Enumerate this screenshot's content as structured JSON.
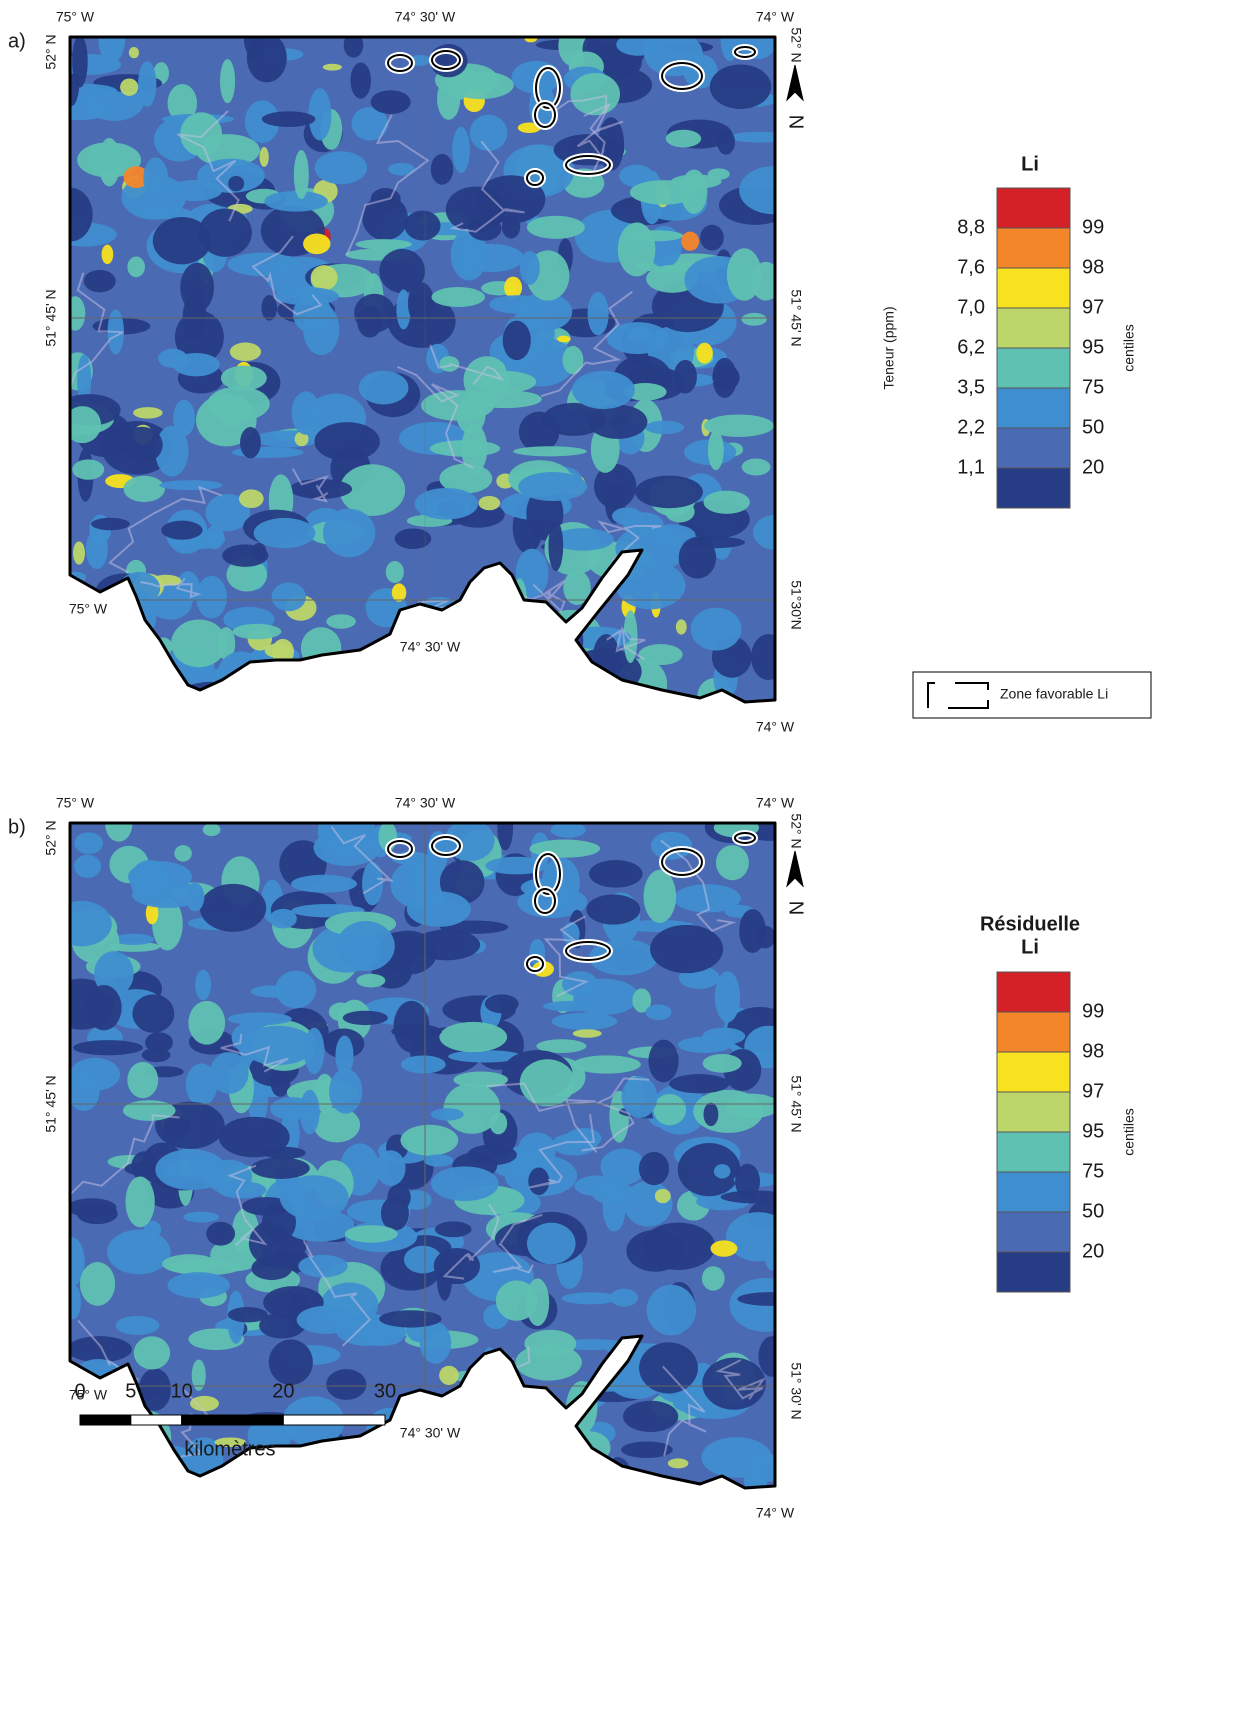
{
  "panels": [
    {
      "label": "a)",
      "longitudes_top": [
        "75° W",
        "74° 30' W",
        "74° W"
      ],
      "latitudes_left": [
        "52° N",
        "51° 45' N"
      ],
      "latitudes_right": [
        "52° N",
        "51° 45' N",
        "51°30'N"
      ],
      "longitude_inner_west": "75° W",
      "longitude_inner_mid": "74° 30' W",
      "longitude_bottom_east": "74° W",
      "legend": {
        "title": [
          "Li"
        ],
        "axis_label": "Teneur (ppm)",
        "teneurs": [
          "8,8",
          "7,6",
          "7,0",
          "6,2",
          "3,5",
          "2,2",
          "1,1"
        ],
        "centiles": [
          99,
          98,
          97,
          95,
          75,
          50,
          20
        ],
        "centiles_label": "centiles"
      }
    },
    {
      "label": "b)",
      "longitudes_top": [
        "75° W",
        "74° 30' W",
        "74° W"
      ],
      "latitudes_left": [
        "52° N",
        "51° 45' N"
      ],
      "latitudes_right": [
        "52° N",
        "51° 45' N",
        "51° 30' N"
      ],
      "longitude_inner_west": "75° W",
      "longitude_inner_mid": "74° 30' W",
      "longitude_bottom_east": "74° W",
      "legend": {
        "title": [
          "Résiduelle",
          "Li"
        ],
        "centiles": [
          99,
          98,
          97,
          95,
          75,
          50,
          20
        ],
        "centiles_label": "centiles"
      }
    }
  ],
  "class_colors": [
    "#d42027",
    "#f4862a",
    "#f8e11e",
    "#bcd66a",
    "#5fc1b2",
    "#3f8ed0",
    "#4a6ab3",
    "#263c84"
  ],
  "north_label": "N",
  "zone_legend": "Zone favorable Li",
  "scale": {
    "ticks": [
      0,
      5,
      10,
      20,
      30
    ],
    "unit": "kilomètres"
  }
}
